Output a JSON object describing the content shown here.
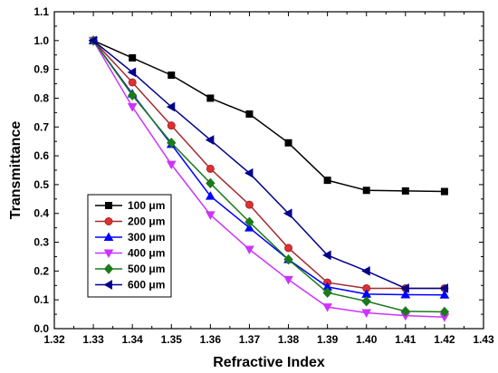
{
  "chart_data": {
    "type": "line",
    "title": "",
    "xlabel": "Refractive Index",
    "ylabel": "Transmittance",
    "xlim": [
      1.32,
      1.43
    ],
    "ylim": [
      0.0,
      1.1
    ],
    "xticks": [
      "1.32",
      "1.33",
      "1.34",
      "1.35",
      "1.36",
      "1.37",
      "1.38",
      "1.39",
      "1.40",
      "1.41",
      "1.42",
      "1.43"
    ],
    "yticks": [
      "0.0",
      "0.1",
      "0.2",
      "0.3",
      "0.4",
      "0.5",
      "0.6",
      "0.7",
      "0.8",
      "0.9",
      "1.0",
      "1.1"
    ],
    "grid": false,
    "legend_position": "bottom-left",
    "x": [
      1.33,
      1.34,
      1.35,
      1.36,
      1.37,
      1.38,
      1.39,
      1.4,
      1.41,
      1.42
    ],
    "series": [
      {
        "name": "100 μm",
        "color": "#000000",
        "marker": "square",
        "values": [
          1.0,
          0.94,
          0.88,
          0.8,
          0.745,
          0.645,
          0.515,
          0.48,
          0.478,
          0.476
        ]
      },
      {
        "name": "200 μm",
        "color": "#a52a2a",
        "marker_fill": "#e03030",
        "marker": "circle",
        "values": [
          1.0,
          0.855,
          0.705,
          0.555,
          0.43,
          0.28,
          0.16,
          0.14,
          0.14,
          0.14
        ]
      },
      {
        "name": "300 μm",
        "color": "#0000ff",
        "marker": "triangle-up",
        "values": [
          1.0,
          0.815,
          0.64,
          0.46,
          0.35,
          0.24,
          0.145,
          0.12,
          0.118,
          0.117
        ]
      },
      {
        "name": "400 μm",
        "color": "#cc33ff",
        "marker": "triangle-down",
        "values": [
          1.0,
          0.77,
          0.57,
          0.395,
          0.275,
          0.17,
          0.075,
          0.055,
          0.045,
          0.04
        ]
      },
      {
        "name": "500 μm",
        "color": "#1b7a1b",
        "marker": "diamond",
        "values": [
          1.0,
          0.81,
          0.645,
          0.505,
          0.37,
          0.24,
          0.125,
          0.095,
          0.06,
          0.058
        ]
      },
      {
        "name": "600 μm",
        "color": "#00008b",
        "marker": "triangle-left",
        "values": [
          1.0,
          0.89,
          0.77,
          0.655,
          0.54,
          0.4,
          0.255,
          0.2,
          0.14,
          0.14
        ]
      }
    ]
  }
}
